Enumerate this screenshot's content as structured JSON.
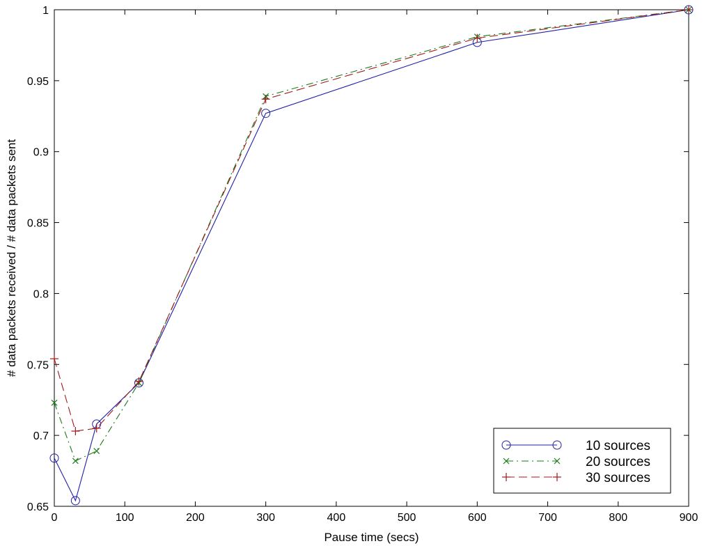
{
  "chart_data": {
    "type": "line",
    "xlabel": "Pause time (secs)",
    "ylabel": "# data packets received / # data packets sent",
    "xlim": [
      0,
      900
    ],
    "ylim": [
      0.65,
      1
    ],
    "xticks": [
      "0",
      "100",
      "200",
      "300",
      "400",
      "500",
      "600",
      "700",
      "800",
      "900"
    ],
    "yticks": [
      "0.65",
      "0.7",
      "0.75",
      "0.8",
      "0.85",
      "0.9",
      "0.95",
      "1"
    ],
    "grid": false,
    "legend_position": "bottom-right",
    "series": [
      {
        "name": "10 sources",
        "color": "#1f1fa8",
        "line_style": "solid",
        "marker": "circle",
        "x": [
          0,
          30,
          60,
          120,
          300,
          600,
          900
        ],
        "y": [
          0.684,
          0.654,
          0.708,
          0.737,
          0.927,
          0.977,
          1.0
        ]
      },
      {
        "name": "20 sources",
        "color": "#1a7a1a",
        "line_style": "dash-dot",
        "marker": "x",
        "x": [
          0,
          30,
          60,
          120,
          300,
          600,
          900
        ],
        "y": [
          0.723,
          0.682,
          0.689,
          0.737,
          0.939,
          0.981,
          1.0
        ]
      },
      {
        "name": "30 sources",
        "color": "#a01818",
        "line_style": "dashed",
        "marker": "plus",
        "x": [
          0,
          30,
          60,
          120,
          300,
          600,
          900
        ],
        "y": [
          0.754,
          0.703,
          0.705,
          0.738,
          0.937,
          0.98,
          1.0
        ]
      }
    ]
  }
}
